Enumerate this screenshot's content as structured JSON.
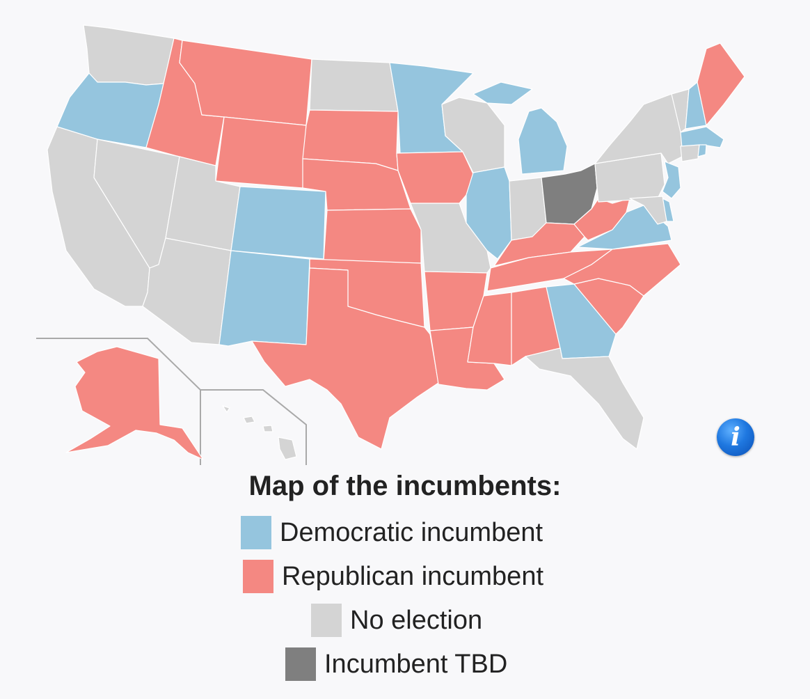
{
  "legend": {
    "title": "Map of the incumbents:",
    "items": [
      {
        "label": "Democratic incumbent",
        "color": "#95c5de"
      },
      {
        "label": "Republican incumbent",
        "color": "#f48882"
      },
      {
        "label": "No election",
        "color": "#d4d4d4"
      },
      {
        "label": "Incumbent TBD",
        "color": "#7f7f7f"
      }
    ]
  },
  "colors": {
    "democratic": "#95c5de",
    "republican": "#f48882",
    "no_election": "#d4d4d4",
    "tbd": "#7f7f7f",
    "background": "#f8f8fa"
  },
  "info_icon": {
    "glyph": "i",
    "icon": "info-icon"
  },
  "states": {
    "WA": "no_election",
    "OR": "democratic",
    "CA": "no_election",
    "NV": "no_election",
    "ID": "republican",
    "MT": "republican",
    "WY": "republican",
    "UT": "no_election",
    "AZ": "no_election",
    "CO": "democratic",
    "NM": "democratic",
    "ND": "no_election",
    "SD": "republican",
    "NE": "republican",
    "KS": "republican",
    "OK": "republican",
    "TX": "republican",
    "MN": "democratic",
    "IA": "republican",
    "MO": "no_election",
    "AR": "republican",
    "LA": "republican",
    "WI": "no_election",
    "IL": "democratic",
    "MI": "democratic",
    "IN": "no_election",
    "OH": "tbd",
    "KY": "republican",
    "TN": "republican",
    "MS": "republican",
    "AL": "republican",
    "GA": "democratic",
    "FL": "no_election",
    "SC": "republican",
    "NC": "republican",
    "VA": "democratic",
    "WV": "republican",
    "PA": "no_election",
    "NY": "no_election",
    "VT": "no_election",
    "NH": "democratic",
    "ME": "republican",
    "MA": "democratic",
    "RI": "democratic",
    "CT": "no_election",
    "NJ": "democratic",
    "DE": "democratic",
    "MD": "no_election",
    "AK": "republican",
    "HI": "no_election"
  }
}
